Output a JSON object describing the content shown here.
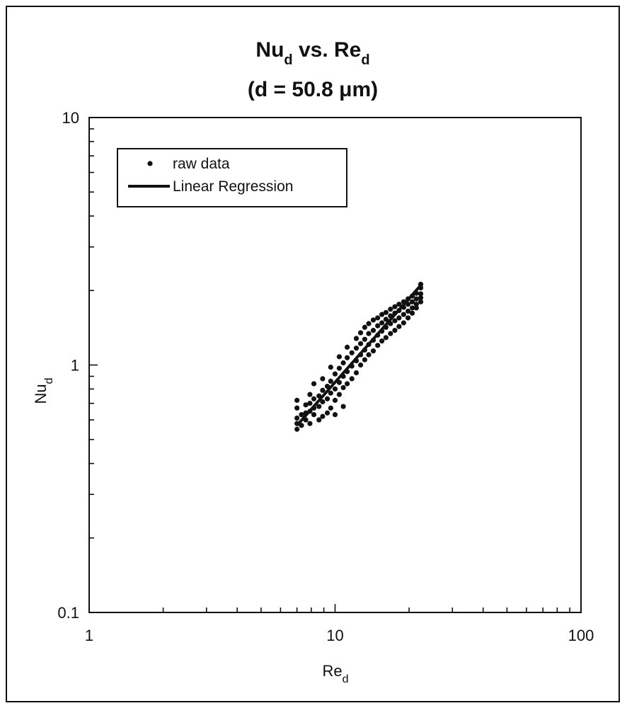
{
  "chart_data": {
    "type": "scatter",
    "title": {
      "line1": {
        "a": "Nu",
        "a_sub": "d",
        "b": " vs. Re",
        "b_sub": "d"
      },
      "line2": "(d = 50.8 μm)"
    },
    "xlabel": {
      "main": "Re",
      "sub": "d"
    },
    "ylabel": {
      "main": "Nu",
      "sub": "d"
    },
    "x_scale": "log",
    "y_scale": "log",
    "xlim": [
      1,
      100
    ],
    "ylim": [
      0.1,
      10
    ],
    "x_ticks": [
      {
        "value": 1,
        "label": "1"
      },
      {
        "value": 10,
        "label": "10"
      },
      {
        "value": 100,
        "label": "100"
      }
    ],
    "y_ticks": [
      {
        "value": 0.1,
        "label": "0.1"
      },
      {
        "value": 1,
        "label": "1"
      },
      {
        "value": 10,
        "label": "10"
      }
    ],
    "grid": false,
    "legend": {
      "placement": "top-left",
      "entries": [
        {
          "label": "raw data",
          "marker": "dot"
        },
        {
          "label": "Linear Regression",
          "marker": "line"
        }
      ]
    },
    "series": [
      {
        "name": "raw data",
        "type": "scatter",
        "points": [
          [
            7.0,
            0.55
          ],
          [
            7.0,
            0.58
          ],
          [
            7.0,
            0.61
          ],
          [
            7.0,
            0.67
          ],
          [
            7.0,
            0.72
          ],
          [
            7.3,
            0.57
          ],
          [
            7.3,
            0.63
          ],
          [
            7.6,
            0.6
          ],
          [
            7.6,
            0.64
          ],
          [
            7.6,
            0.69
          ],
          [
            7.9,
            0.58
          ],
          [
            7.9,
            0.65
          ],
          [
            7.9,
            0.7
          ],
          [
            7.9,
            0.76
          ],
          [
            8.2,
            0.63
          ],
          [
            8.2,
            0.67
          ],
          [
            8.2,
            0.73
          ],
          [
            8.2,
            0.84
          ],
          [
            8.6,
            0.6
          ],
          [
            8.6,
            0.68
          ],
          [
            8.6,
            0.75
          ],
          [
            8.9,
            0.62
          ],
          [
            8.9,
            0.71
          ],
          [
            8.9,
            0.79
          ],
          [
            8.9,
            0.88
          ],
          [
            9.3,
            0.64
          ],
          [
            9.3,
            0.73
          ],
          [
            9.3,
            0.82
          ],
          [
            9.6,
            0.67
          ],
          [
            9.6,
            0.77
          ],
          [
            9.6,
            0.86
          ],
          [
            9.6,
            0.98
          ],
          [
            10.0,
            0.63
          ],
          [
            10.0,
            0.72
          ],
          [
            10.0,
            0.8
          ],
          [
            10.0,
            0.92
          ],
          [
            10.4,
            0.76
          ],
          [
            10.4,
            0.85
          ],
          [
            10.4,
            0.97
          ],
          [
            10.4,
            1.08
          ],
          [
            10.8,
            0.68
          ],
          [
            10.8,
            0.81
          ],
          [
            10.8,
            0.9
          ],
          [
            10.8,
            1.02
          ],
          [
            11.2,
            0.84
          ],
          [
            11.2,
            0.94
          ],
          [
            11.2,
            1.07
          ],
          [
            11.2,
            1.18
          ],
          [
            11.7,
            0.88
          ],
          [
            11.7,
            0.99
          ],
          [
            11.7,
            1.12
          ],
          [
            12.2,
            0.93
          ],
          [
            12.2,
            1.04
          ],
          [
            12.2,
            1.17
          ],
          [
            12.2,
            1.28
          ],
          [
            12.7,
            1.0
          ],
          [
            12.7,
            1.1
          ],
          [
            12.7,
            1.22
          ],
          [
            12.7,
            1.35
          ],
          [
            13.2,
            1.05
          ],
          [
            13.2,
            1.15
          ],
          [
            13.2,
            1.27
          ],
          [
            13.2,
            1.42
          ],
          [
            13.7,
            1.1
          ],
          [
            13.7,
            1.21
          ],
          [
            13.7,
            1.34
          ],
          [
            13.7,
            1.47
          ],
          [
            14.3,
            1.14
          ],
          [
            14.3,
            1.26
          ],
          [
            14.3,
            1.38
          ],
          [
            14.3,
            1.52
          ],
          [
            14.9,
            1.2
          ],
          [
            14.9,
            1.32
          ],
          [
            14.9,
            1.44
          ],
          [
            14.9,
            1.55
          ],
          [
            15.5,
            1.25
          ],
          [
            15.5,
            1.37
          ],
          [
            15.5,
            1.48
          ],
          [
            15.5,
            1.6
          ],
          [
            16.1,
            1.29
          ],
          [
            16.1,
            1.42
          ],
          [
            16.1,
            1.53
          ],
          [
            16.1,
            1.63
          ],
          [
            16.8,
            1.34
          ],
          [
            16.8,
            1.47
          ],
          [
            16.8,
            1.58
          ],
          [
            16.8,
            1.68
          ],
          [
            17.5,
            1.38
          ],
          [
            17.5,
            1.51
          ],
          [
            17.5,
            1.62
          ],
          [
            17.5,
            1.72
          ],
          [
            18.2,
            1.43
          ],
          [
            18.2,
            1.55
          ],
          [
            18.2,
            1.66
          ],
          [
            18.2,
            1.76
          ],
          [
            19.0,
            1.48
          ],
          [
            19.0,
            1.6
          ],
          [
            19.0,
            1.71
          ],
          [
            19.0,
            1.8
          ],
          [
            19.8,
            1.55
          ],
          [
            19.8,
            1.65
          ],
          [
            19.8,
            1.76
          ],
          [
            19.8,
            1.85
          ],
          [
            20.6,
            1.62
          ],
          [
            20.6,
            1.7
          ],
          [
            20.6,
            1.8
          ],
          [
            20.6,
            1.9
          ],
          [
            21.4,
            1.7
          ],
          [
            21.4,
            1.76
          ],
          [
            21.4,
            1.85
          ],
          [
            21.4,
            1.95
          ],
          [
            22.3,
            1.8
          ],
          [
            22.3,
            1.87
          ],
          [
            22.3,
            1.94
          ],
          [
            22.3,
            2.05
          ],
          [
            22.3,
            2.12
          ]
        ]
      },
      {
        "name": "Linear Regression",
        "type": "line",
        "points": [
          [
            7.0,
            0.57
          ],
          [
            22.3,
            2.1
          ]
        ]
      }
    ]
  }
}
